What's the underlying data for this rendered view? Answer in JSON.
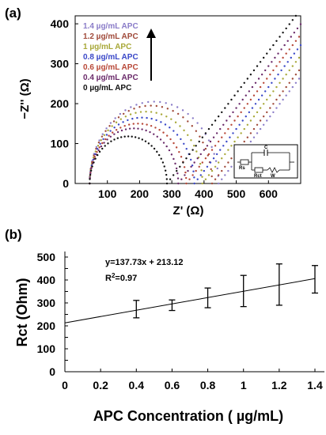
{
  "panels": {
    "a_label": "(a)",
    "b_label": "(b)"
  },
  "chart_data": [
    {
      "type": "scatter",
      "panel": "(a)",
      "xlabel": "Z' (Ω)",
      "ylabel": "−Z'' (Ω)",
      "xlim": [
        0,
        700
      ],
      "ylim": [
        0,
        420
      ],
      "xticks": [
        100,
        200,
        300,
        400,
        500,
        600
      ],
      "yticks": [
        0,
        100,
        200,
        300,
        400
      ],
      "legend_placement": "top-left",
      "arrow": "up",
      "series": [
        {
          "name": "1.4 µg/mL APC",
          "color": "#8a7cc8",
          "rs": 45,
          "rct": 400,
          "peak_y": 205,
          "tail_slope": 1.0,
          "x_end": 700
        },
        {
          "name": "1.2 µg/mL APC",
          "color": "#a04a3a",
          "rs": 45,
          "rct": 380,
          "peak_y": 195,
          "tail_slope": 1.0,
          "x_end": 700
        },
        {
          "name": "1 µg/mL APC",
          "color": "#a8a838",
          "rs": 45,
          "rct": 350,
          "peak_y": 180,
          "tail_slope": 1.0,
          "x_end": 700
        },
        {
          "name": "0.8 µg/mL APC",
          "color": "#3a48c8",
          "rs": 45,
          "rct": 325,
          "peak_y": 165,
          "tail_slope": 1.0,
          "x_end": 700
        },
        {
          "name": "0.6 µg/mL APC",
          "color": "#b84838",
          "rs": 45,
          "rct": 300,
          "peak_y": 150,
          "tail_slope": 1.0,
          "x_end": 700
        },
        {
          "name": "0.4 µg/mL APC",
          "color": "#6a2a6a",
          "rs": 45,
          "rct": 275,
          "peak_y": 138,
          "tail_slope": 1.0,
          "x_end": 700
        },
        {
          "name": "0 µg/mL APC",
          "color": "#111111",
          "rs": 45,
          "rct": 240,
          "peak_y": 118,
          "tail_slope": 1.0,
          "x_end": 700
        }
      ],
      "inset_circuit": {
        "labels": [
          "Rs",
          "C",
          "Rct",
          "W"
        ]
      }
    },
    {
      "type": "scatter",
      "panel": "(b)",
      "xlabel": "APC Concentration ( µg/mL)",
      "ylabel": "Rct (Ohm)",
      "xlim": [
        0,
        1.5
      ],
      "ylim": [
        0,
        500
      ],
      "xticks": [
        0,
        0.2,
        0.4,
        0.6,
        0.8,
        1,
        1.2,
        1.4
      ],
      "yticks": [
        0,
        50,
        100,
        150,
        200,
        250,
        300,
        350,
        400,
        450,
        500
      ],
      "equation": "y=137.73x + 213.12",
      "r2_prefix": "R",
      "r2_sup": "2",
      "r2_suffix": "=0.97",
      "fit": {
        "slope": 137.73,
        "intercept": 213.12
      },
      "points": [
        {
          "x": 0,
          "y": 215,
          "err": 0
        },
        {
          "x": 0.4,
          "y": 273,
          "err": 38
        },
        {
          "x": 0.6,
          "y": 290,
          "err": 23
        },
        {
          "x": 0.8,
          "y": 322,
          "err": 43
        },
        {
          "x": 1.0,
          "y": 352,
          "err": 68
        },
        {
          "x": 1.2,
          "y": 380,
          "err": 90
        },
        {
          "x": 1.4,
          "y": 403,
          "err": 60
        }
      ]
    }
  ]
}
